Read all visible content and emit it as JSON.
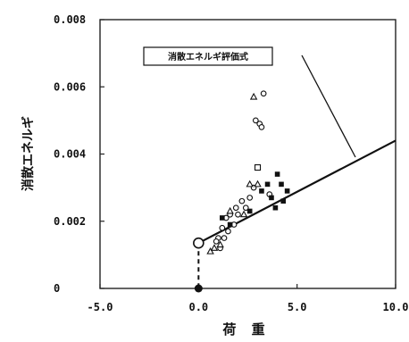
{
  "chart_data": {
    "type": "scatter",
    "title": "",
    "xlabel": "荷 重",
    "ylabel": "消散エネルギ",
    "xlim": [
      -5.0,
      10.0
    ],
    "ylim": [
      0,
      0.008
    ],
    "xticks": [
      "-5.0",
      "0.0",
      "5.0",
      "10.0"
    ],
    "yticks": [
      "0",
      "0.002",
      "0.004",
      "0.006",
      "0.008"
    ],
    "legend": "消散エネルギ評価式",
    "fit_line": {
      "x": [
        0.0,
        10.0
      ],
      "y": [
        0.00135,
        0.0044
      ]
    },
    "origin_markers": {
      "open": {
        "x": 0.0,
        "y": 0.00135
      },
      "filled": {
        "x": 0.0,
        "y": 0.0
      }
    },
    "series": [
      {
        "marker": "circle",
        "points": [
          [
            3.3,
            0.0058
          ],
          [
            2.9,
            0.005
          ],
          [
            3.1,
            0.0049
          ],
          [
            3.2,
            0.0048
          ],
          [
            2.8,
            0.003
          ],
          [
            2.2,
            0.0026
          ],
          [
            1.9,
            0.0024
          ],
          [
            2.4,
            0.0024
          ],
          [
            1.4,
            0.0021
          ],
          [
            1.6,
            0.0022
          ],
          [
            1.8,
            0.0019
          ],
          [
            1.2,
            0.0018
          ],
          [
            1.5,
            0.0017
          ],
          [
            1.0,
            0.0015
          ],
          [
            1.3,
            0.0015
          ],
          [
            0.9,
            0.0014
          ],
          [
            1.1,
            0.0012
          ],
          [
            2.6,
            0.0027
          ],
          [
            3.6,
            0.0028
          ],
          [
            2.0,
            0.0022
          ]
        ]
      },
      {
        "marker": "triangle",
        "points": [
          [
            2.8,
            0.0057
          ],
          [
            2.6,
            0.0031
          ],
          [
            3.0,
            0.0031
          ],
          [
            0.6,
            0.0011
          ],
          [
            0.8,
            0.0012
          ],
          [
            1.1,
            0.0013
          ],
          [
            1.6,
            0.0023
          ],
          [
            2.3,
            0.0022
          ]
        ]
      },
      {
        "marker": "square",
        "points": [
          [
            3.0,
            0.0036
          ]
        ]
      },
      {
        "marker": "filled",
        "points": [
          [
            3.5,
            0.0031
          ],
          [
            4.0,
            0.0034
          ],
          [
            4.2,
            0.0031
          ],
          [
            4.5,
            0.0029
          ],
          [
            3.7,
            0.0027
          ],
          [
            3.9,
            0.0024
          ],
          [
            4.3,
            0.0026
          ],
          [
            3.2,
            0.0029
          ],
          [
            1.2,
            0.0021
          ],
          [
            1.6,
            0.0019
          ],
          [
            2.6,
            0.0023
          ]
        ]
      }
    ]
  }
}
